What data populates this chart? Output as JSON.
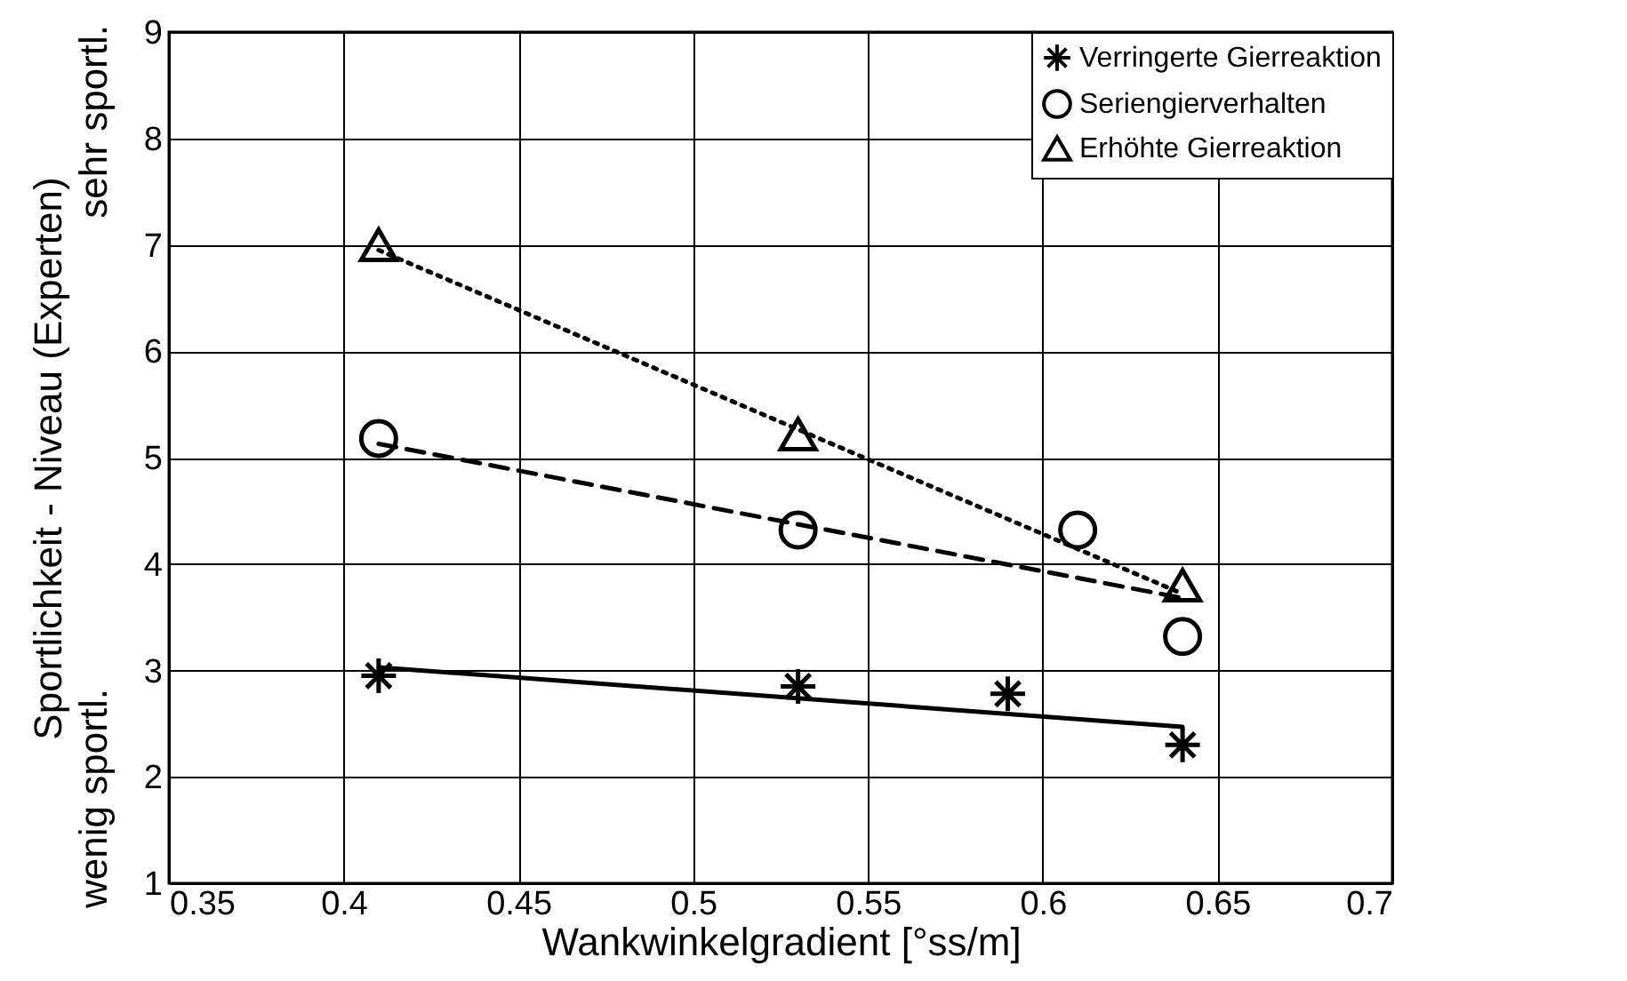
{
  "chart_data": {
    "type": "scatter",
    "xlabel": "Wankwinkelgradient [°ss/m]",
    "ylabel": "Sportlichkeit - Niveau (Experten)",
    "annotations": [
      "sehr sportl.",
      "wenig sportl."
    ],
    "xlim": [
      0.35,
      0.7
    ],
    "xticks": [
      0.35,
      0.4,
      0.45,
      0.5,
      0.55,
      0.6,
      0.65,
      0.7
    ],
    "ylim": [
      1,
      9
    ],
    "yticks": [
      1,
      2,
      3,
      4,
      5,
      6,
      7,
      8,
      9
    ],
    "grid": true,
    "legend": "top right",
    "series": [
      {
        "name": "Verringerte Gierreaktion",
        "type": "scatter",
        "marker": "cross",
        "color": "#000000",
        "x": [
          0.41,
          0.53,
          0.59,
          0.64
        ],
        "values": [
          2.95,
          2.85,
          2.78,
          2.3
        ]
      },
      {
        "name": "Seriengierverhalten",
        "type": "scatter",
        "marker": "circle",
        "color": "#000000",
        "x": [
          0.41,
          0.53,
          0.61,
          0.64
        ],
        "values": [
          5.18,
          4.32,
          4.32,
          3.32
        ]
      },
      {
        "name": "Erhöhte Gierreaktion",
        "type": "scatter",
        "marker": "triangle",
        "color": "#000000",
        "x": [
          0.41,
          0.53,
          0.64
        ],
        "values": [
          7.0,
          5.22,
          3.8
        ]
      },
      {
        "type": "line",
        "line_style": "solid",
        "color": "#000000",
        "x": [
          0.41,
          0.64
        ],
        "values": [
          3.03,
          2.47
        ]
      },
      {
        "type": "line",
        "line_style": "dashed",
        "color": "#000000",
        "x": [
          0.41,
          0.64
        ],
        "values": [
          5.13,
          3.68
        ]
      },
      {
        "type": "line",
        "line_style": "dotted",
        "color": "#000000",
        "x": [
          0.41,
          0.64
        ],
        "values": [
          6.95,
          3.72
        ]
      }
    ]
  }
}
